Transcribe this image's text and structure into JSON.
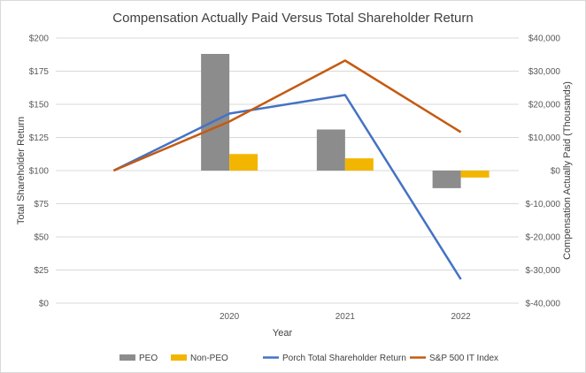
{
  "chart_data": {
    "type": "bar+line",
    "title": "Compensation Actually Paid Versus Total Shareholder Return",
    "xlabel": "Year",
    "ylabel_left": "Total Shareholder Return",
    "ylabel_right": "Compensation Actually Paid (Thousands)",
    "x_points": [
      "",
      "2020",
      "2021",
      "2022"
    ],
    "categories": [
      "2020",
      "2021",
      "2022"
    ],
    "left_axis": {
      "min": 0,
      "max": 200,
      "ticks": [
        0,
        25,
        50,
        75,
        100,
        125,
        150,
        175,
        200
      ],
      "tick_labels": [
        "$0",
        "$25",
        "$50",
        "$75",
        "$100",
        "$125",
        "$150",
        "$175",
        "$200"
      ]
    },
    "right_axis": {
      "min": -40000,
      "max": 40000,
      "ticks": [
        -40000,
        -30000,
        -20000,
        -10000,
        0,
        10000,
        20000,
        30000,
        40000
      ],
      "tick_labels": [
        "$-40,000",
        "$-30,000",
        "$-20,000",
        "$-10,000",
        "$0",
        "$10,000",
        "$20,000",
        "$30,000",
        "$40,000"
      ]
    },
    "bar_series": [
      {
        "name": "PEO",
        "color": "#8c8c8c",
        "values": [
          35200,
          12400,
          -5300
        ]
      },
      {
        "name": "Non-PEO",
        "color": "#f2b600",
        "values": [
          5000,
          3700,
          -2100
        ]
      }
    ],
    "line_series": [
      {
        "name": "Porch Total Shareholder Return",
        "color": "#4472c4",
        "values": [
          100,
          143,
          157,
          18
        ]
      },
      {
        "name": "S&P 500 IT Index",
        "color": "#c55a11",
        "values": [
          100,
          137,
          183,
          129
        ]
      }
    ],
    "legend": {
      "position": "bottom",
      "items": [
        {
          "label": "PEO",
          "color": "#8c8c8c",
          "kind": "bar"
        },
        {
          "label": "Non-PEO",
          "color": "#f2b600",
          "kind": "bar"
        },
        {
          "label": "Porch Total Shareholder Return",
          "color": "#4472c4",
          "kind": "line"
        },
        {
          "label": "S&P 500 IT Index",
          "color": "#c55a11",
          "kind": "line"
        }
      ]
    }
  }
}
